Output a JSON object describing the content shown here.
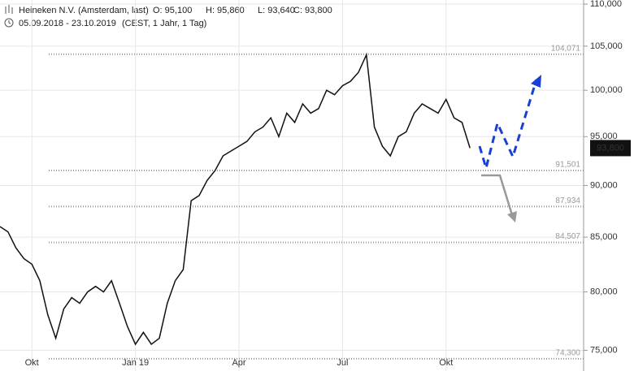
{
  "chart_data": {
    "type": "line",
    "title": "Heineken N.V. (Amsterdam, last)",
    "ohlc": [
      "O: 95,100",
      "H: 95,860",
      "L: 93,640",
      "C: 93,800"
    ],
    "subtitle": "05.09.2018 - 23.10.2019",
    "subtitle_note": "(CEST, 1 Jahr, 1 Tag)",
    "categories": [
      null,
      null,
      null,
      null,
      "Okt",
      null,
      null,
      null,
      null,
      null,
      null,
      null,
      null,
      null,
      null,
      null,
      null,
      "Jan 19",
      null,
      null,
      null,
      null,
      null,
      null,
      null,
      null,
      null,
      null,
      null,
      null,
      "Apr",
      null,
      null,
      null,
      null,
      null,
      null,
      null,
      null,
      null,
      null,
      null,
      null,
      "Jul",
      null,
      null,
      null,
      null,
      null,
      null,
      null,
      null,
      null,
      null,
      null,
      null,
      "Okt",
      null,
      null,
      null
    ],
    "series": [
      {
        "name": "Heineken N.V.",
        "color": "#111111",
        "values": [
          86000,
          85500,
          84000,
          83000,
          82500,
          81000,
          78000,
          76000,
          78500,
          79500,
          79000,
          80000,
          80500,
          80000,
          81000,
          79000,
          77000,
          75500,
          76500,
          75500,
          76000,
          79000,
          81000,
          82000,
          88500,
          89000,
          90500,
          91500,
          93000,
          93500,
          94000,
          94500,
          95500,
          96000,
          97000,
          95000,
          97500,
          96500,
          98500,
          97500,
          98000,
          100000,
          99500,
          100500,
          101000,
          102000,
          104000,
          96000,
          94000,
          93000,
          95000,
          95500,
          97500,
          98500,
          98000,
          97500,
          99000,
          97000,
          96500,
          93800
        ]
      }
    ],
    "log_scale": true,
    "ylim": [
      73300,
      110500
    ],
    "yticks": [
      {
        "value": 75000,
        "label": "75,000"
      },
      {
        "value": 80000,
        "label": "80,000"
      },
      {
        "value": 85000,
        "label": "85,000"
      },
      {
        "value": 90000,
        "label": "90,000"
      },
      {
        "value": 95000,
        "label": "95,000"
      },
      {
        "value": 100000,
        "label": "100,000"
      },
      {
        "value": 105000,
        "label": "105,000"
      },
      {
        "value": 110000,
        "label": "110,000"
      }
    ],
    "grid": true,
    "levels": [
      {
        "value": 104071,
        "label": "104,071"
      },
      {
        "value": 91501,
        "label": "91,501"
      },
      {
        "value": 87934,
        "label": "87,934"
      },
      {
        "value": 84507,
        "label": "84,507"
      },
      {
        "value": 74300,
        "label": "74,300"
      }
    ],
    "last": {
      "value": 93800,
      "label": "93,800"
    }
  }
}
